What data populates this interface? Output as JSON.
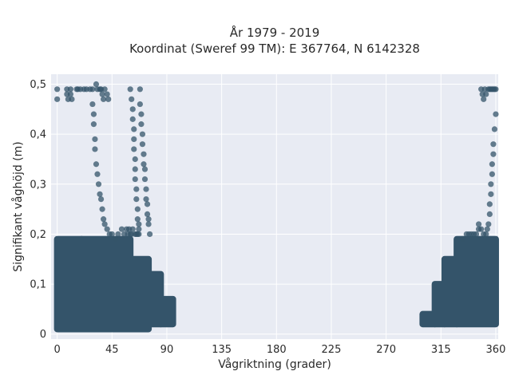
{
  "chart_data": {
    "type": "scatter",
    "title": "År 1979 - 2019",
    "subtitle": "Koordinat (Sweref 99 TM): E 367764, N 6142328",
    "xlabel": "Vågriktning (grader)",
    "ylabel": "Signifikant våghöjd (m)",
    "xlim": [
      -5,
      362
    ],
    "ylim": [
      -0.01,
      0.52
    ],
    "xticks": [
      0,
      45,
      90,
      135,
      180,
      225,
      270,
      315,
      360
    ],
    "xtick_labels": [
      "0",
      "45",
      "90",
      "135",
      "180",
      "225",
      "270",
      "315",
      "360"
    ],
    "yticks": [
      0,
      0.1,
      0.2,
      0.3,
      0.4,
      0.5
    ],
    "ytick_labels": [
      "0",
      "0,1",
      "0,2",
      "0,3",
      "0,4",
      "0,5"
    ],
    "grid": true,
    "point_color": "#34546a",
    "background_color": "#e8ebf3",
    "dense_regions": [
      {
        "x_min": 0,
        "x_max": 20,
        "y_min": 0.01,
        "y_max": 0.19
      },
      {
        "x_min": 20,
        "x_max": 60,
        "y_min": 0.01,
        "y_max": 0.19
      },
      {
        "x_min": 60,
        "x_max": 75,
        "y_min": 0.01,
        "y_max": 0.15
      },
      {
        "x_min": 75,
        "x_max": 85,
        "y_min": 0.02,
        "y_max": 0.12
      },
      {
        "x_min": 85,
        "x_max": 95,
        "y_min": 0.02,
        "y_max": 0.07
      },
      {
        "x_min": 328,
        "x_max": 360,
        "y_min": 0.02,
        "y_max": 0.19
      },
      {
        "x_min": 318,
        "x_max": 328,
        "y_min": 0.02,
        "y_max": 0.15
      },
      {
        "x_min": 310,
        "x_max": 318,
        "y_min": 0.02,
        "y_max": 0.1
      },
      {
        "x_min": 300,
        "x_max": 310,
        "y_min": 0.02,
        "y_max": 0.04
      }
    ],
    "points": [
      [
        0,
        0.49
      ],
      [
        0,
        0.47
      ],
      [
        8,
        0.49
      ],
      [
        8,
        0.48
      ],
      [
        9,
        0.47
      ],
      [
        11,
        0.49
      ],
      [
        11,
        0.48
      ],
      [
        12,
        0.47
      ],
      [
        16,
        0.49
      ],
      [
        17,
        0.49
      ],
      [
        19,
        0.49
      ],
      [
        22,
        0.49
      ],
      [
        24,
        0.49
      ],
      [
        27,
        0.49
      ],
      [
        29,
        0.49
      ],
      [
        32,
        0.5
      ],
      [
        33,
        0.49
      ],
      [
        35,
        0.49
      ],
      [
        36,
        0.49
      ],
      [
        37,
        0.48
      ],
      [
        38,
        0.47
      ],
      [
        39,
        0.49
      ],
      [
        41,
        0.48
      ],
      [
        42,
        0.47
      ],
      [
        29,
        0.46
      ],
      [
        30,
        0.44
      ],
      [
        30,
        0.42
      ],
      [
        31,
        0.39
      ],
      [
        31,
        0.37
      ],
      [
        32,
        0.34
      ],
      [
        33,
        0.32
      ],
      [
        34,
        0.3
      ],
      [
        35,
        0.28
      ],
      [
        36,
        0.27
      ],
      [
        37,
        0.25
      ],
      [
        38,
        0.23
      ],
      [
        39,
        0.22
      ],
      [
        41,
        0.21
      ],
      [
        43,
        0.2
      ],
      [
        60,
        0.49
      ],
      [
        61,
        0.47
      ],
      [
        62,
        0.45
      ],
      [
        62,
        0.43
      ],
      [
        63,
        0.41
      ],
      [
        63,
        0.39
      ],
      [
        63,
        0.37
      ],
      [
        64,
        0.35
      ],
      [
        64,
        0.33
      ],
      [
        64,
        0.31
      ],
      [
        65,
        0.29
      ],
      [
        65,
        0.27
      ],
      [
        66,
        0.25
      ],
      [
        66,
        0.23
      ],
      [
        67,
        0.22
      ],
      [
        67,
        0.21
      ],
      [
        68,
        0.49
      ],
      [
        68,
        0.46
      ],
      [
        69,
        0.44
      ],
      [
        69,
        0.42
      ],
      [
        70,
        0.4
      ],
      [
        70,
        0.38
      ],
      [
        71,
        0.36
      ],
      [
        71,
        0.34
      ],
      [
        72,
        0.33
      ],
      [
        72,
        0.31
      ],
      [
        73,
        0.29
      ],
      [
        73,
        0.27
      ],
      [
        74,
        0.26
      ],
      [
        74,
        0.24
      ],
      [
        75,
        0.23
      ],
      [
        75,
        0.22
      ],
      [
        76,
        0.2
      ],
      [
        58,
        0.2
      ],
      [
        59,
        0.21
      ],
      [
        60,
        0.2
      ],
      [
        61,
        0.2
      ],
      [
        62,
        0.21
      ],
      [
        64,
        0.2
      ],
      [
        65,
        0.2
      ],
      [
        66,
        0.2
      ],
      [
        67,
        0.2
      ],
      [
        45,
        0.2
      ],
      [
        48,
        0.19
      ],
      [
        50,
        0.2
      ],
      [
        53,
        0.21
      ],
      [
        55,
        0.2
      ],
      [
        57,
        0.21
      ],
      [
        348,
        0.49
      ],
      [
        349,
        0.48
      ],
      [
        350,
        0.47
      ],
      [
        351,
        0.49
      ],
      [
        352,
        0.48
      ],
      [
        354,
        0.49
      ],
      [
        355,
        0.49
      ],
      [
        356,
        0.49
      ],
      [
        357,
        0.49
      ],
      [
        358,
        0.49
      ],
      [
        359,
        0.49
      ],
      [
        360,
        0.49
      ],
      [
        360,
        0.44
      ],
      [
        359,
        0.41
      ],
      [
        358,
        0.38
      ],
      [
        358,
        0.36
      ],
      [
        357,
        0.34
      ],
      [
        357,
        0.32
      ],
      [
        356,
        0.3
      ],
      [
        356,
        0.28
      ],
      [
        355,
        0.26
      ],
      [
        355,
        0.24
      ],
      [
        354,
        0.22
      ],
      [
        353,
        0.21
      ],
      [
        340,
        0.2
      ],
      [
        342,
        0.2
      ],
      [
        344,
        0.2
      ],
      [
        346,
        0.21
      ],
      [
        348,
        0.21
      ],
      [
        350,
        0.2
      ],
      [
        352,
        0.2
      ],
      [
        346,
        0.22
      ],
      [
        333,
        0.19
      ],
      [
        336,
        0.2
      ],
      [
        338,
        0.2
      ]
    ]
  }
}
